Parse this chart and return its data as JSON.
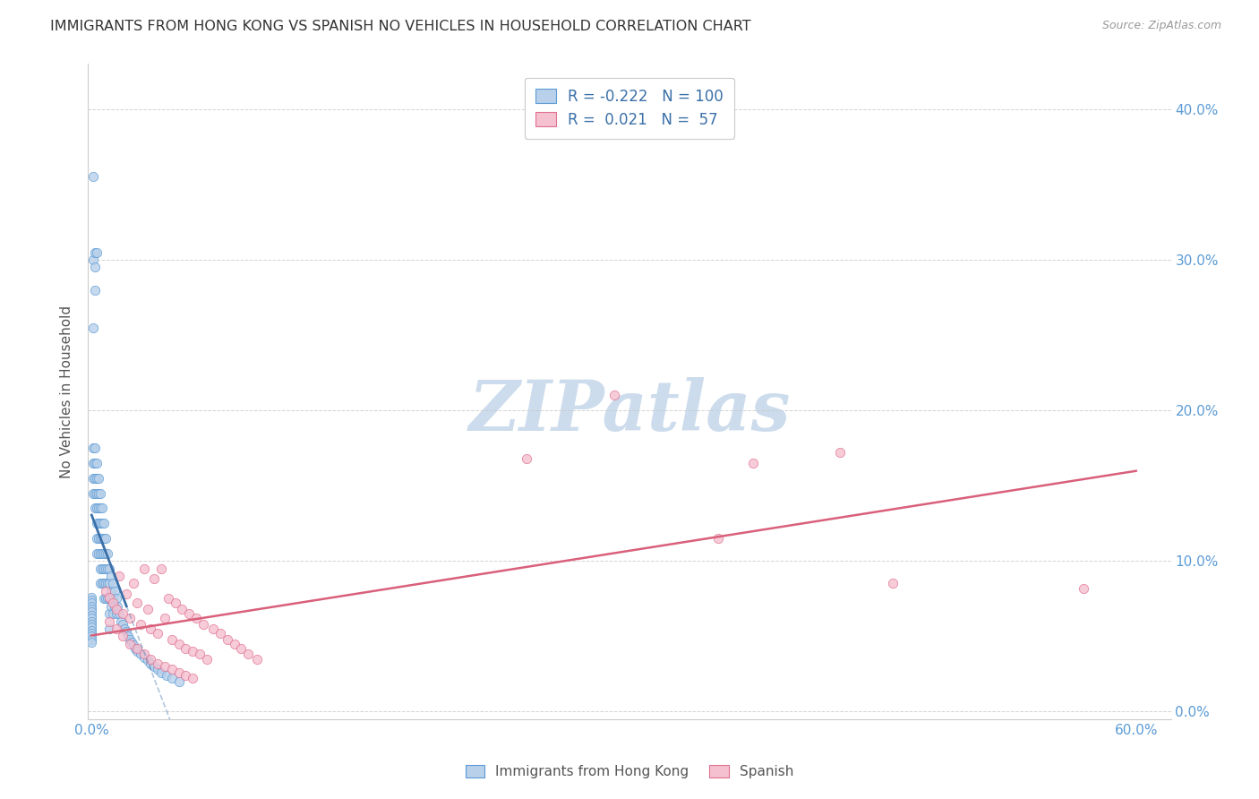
{
  "title": "IMMIGRANTS FROM HONG KONG VS SPANISH NO VEHICLES IN HOUSEHOLD CORRELATION CHART",
  "source": "Source: ZipAtlas.com",
  "ylabel": "No Vehicles in Household",
  "ytick_vals": [
    0.0,
    0.1,
    0.2,
    0.3,
    0.4
  ],
  "ytick_labels": [
    "0.0%",
    "10.0%",
    "20.0%",
    "30.0%",
    "40.0%"
  ],
  "xtick_vals": [
    0.0,
    0.1,
    0.2,
    0.3,
    0.4,
    0.5,
    0.6
  ],
  "xlim": [
    -0.002,
    0.62
  ],
  "ylim": [
    -0.005,
    0.43
  ],
  "legend_r_blue": "-0.222",
  "legend_n_blue": "100",
  "legend_r_pink": "0.021",
  "legend_n_pink": "57",
  "blue_fill": "#b8d0ea",
  "blue_edge": "#5b9bd5",
  "blue_line": "#3a6fa8",
  "pink_fill": "#f5c0d0",
  "pink_edge": "#e07090",
  "pink_line": "#d9607a",
  "grid_color": "#c8c8c8",
  "watermark_color": "#ccdcec",
  "blue_scatter_x": [
    0.001,
    0.001,
    0.001,
    0.001,
    0.002,
    0.002,
    0.002,
    0.002,
    0.002,
    0.003,
    0.003,
    0.003,
    0.003,
    0.003,
    0.003,
    0.003,
    0.004,
    0.004,
    0.004,
    0.004,
    0.004,
    0.004,
    0.005,
    0.005,
    0.005,
    0.005,
    0.005,
    0.005,
    0.005,
    0.006,
    0.006,
    0.006,
    0.006,
    0.006,
    0.006,
    0.007,
    0.007,
    0.007,
    0.007,
    0.007,
    0.007,
    0.008,
    0.008,
    0.008,
    0.008,
    0.008,
    0.009,
    0.009,
    0.009,
    0.009,
    0.01,
    0.01,
    0.01,
    0.01,
    0.01,
    0.011,
    0.011,
    0.011,
    0.012,
    0.012,
    0.012,
    0.013,
    0.013,
    0.014,
    0.014,
    0.015,
    0.016,
    0.017,
    0.018,
    0.019,
    0.02,
    0.021,
    0.022,
    0.023,
    0.024,
    0.025,
    0.026,
    0.028,
    0.03,
    0.032,
    0.034,
    0.036,
    0.038,
    0.04,
    0.043,
    0.046,
    0.05,
    0.0,
    0.0,
    0.0,
    0.0,
    0.0,
    0.0,
    0.0,
    0.0,
    0.0,
    0.0,
    0.0,
    0.0,
    0.0,
    0.0,
    0.0,
    0.0
  ],
  "blue_scatter_y": [
    0.175,
    0.165,
    0.155,
    0.145,
    0.175,
    0.165,
    0.155,
    0.145,
    0.135,
    0.165,
    0.155,
    0.145,
    0.135,
    0.125,
    0.115,
    0.105,
    0.155,
    0.145,
    0.135,
    0.125,
    0.115,
    0.105,
    0.145,
    0.135,
    0.125,
    0.115,
    0.105,
    0.095,
    0.085,
    0.135,
    0.125,
    0.115,
    0.105,
    0.095,
    0.085,
    0.125,
    0.115,
    0.105,
    0.095,
    0.085,
    0.075,
    0.115,
    0.105,
    0.095,
    0.085,
    0.075,
    0.105,
    0.095,
    0.085,
    0.075,
    0.095,
    0.085,
    0.075,
    0.065,
    0.055,
    0.09,
    0.08,
    0.07,
    0.085,
    0.075,
    0.065,
    0.08,
    0.07,
    0.075,
    0.065,
    0.07,
    0.065,
    0.06,
    0.058,
    0.055,
    0.053,
    0.05,
    0.048,
    0.046,
    0.044,
    0.042,
    0.04,
    0.038,
    0.036,
    0.034,
    0.032,
    0.03,
    0.028,
    0.026,
    0.024,
    0.022,
    0.02,
    0.076,
    0.074,
    0.072,
    0.07,
    0.068,
    0.066,
    0.064,
    0.062,
    0.06,
    0.058,
    0.056,
    0.054,
    0.052,
    0.05,
    0.048,
    0.046
  ],
  "blue_high_x": [
    0.001,
    0.001,
    0.002,
    0.002,
    0.001,
    0.002,
    0.003
  ],
  "blue_high_y": [
    0.355,
    0.3,
    0.305,
    0.295,
    0.255,
    0.28,
    0.305
  ],
  "pink_scatter_x": [
    0.008,
    0.01,
    0.012,
    0.014,
    0.016,
    0.018,
    0.02,
    0.022,
    0.024,
    0.026,
    0.028,
    0.03,
    0.032,
    0.034,
    0.036,
    0.038,
    0.04,
    0.042,
    0.044,
    0.046,
    0.048,
    0.05,
    0.052,
    0.054,
    0.056,
    0.058,
    0.06,
    0.062,
    0.064,
    0.066,
    0.07,
    0.074,
    0.078,
    0.082,
    0.086,
    0.09,
    0.095,
    0.01,
    0.014,
    0.018,
    0.022,
    0.026,
    0.03,
    0.034,
    0.038,
    0.042,
    0.046,
    0.05,
    0.054,
    0.058,
    0.25,
    0.3,
    0.38,
    0.43,
    0.57,
    0.36,
    0.46
  ],
  "pink_scatter_y": [
    0.08,
    0.076,
    0.072,
    0.068,
    0.09,
    0.065,
    0.078,
    0.062,
    0.085,
    0.072,
    0.058,
    0.095,
    0.068,
    0.055,
    0.088,
    0.052,
    0.095,
    0.062,
    0.075,
    0.048,
    0.072,
    0.045,
    0.068,
    0.042,
    0.065,
    0.04,
    0.062,
    0.038,
    0.058,
    0.035,
    0.055,
    0.052,
    0.048,
    0.045,
    0.042,
    0.038,
    0.035,
    0.06,
    0.055,
    0.05,
    0.045,
    0.042,
    0.038,
    0.035,
    0.032,
    0.03,
    0.028,
    0.026,
    0.024,
    0.022,
    0.168,
    0.21,
    0.165,
    0.172,
    0.082,
    0.115,
    0.085
  ]
}
